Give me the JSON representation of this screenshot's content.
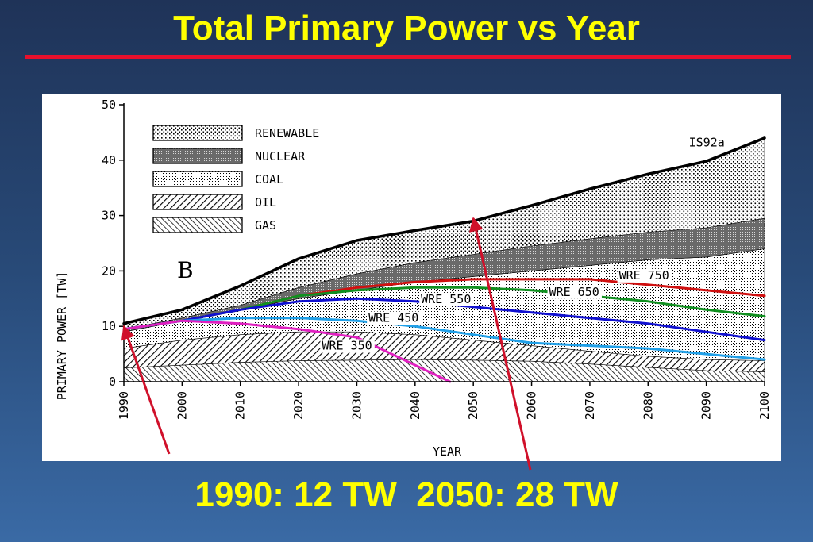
{
  "slide": {
    "title": "Total Primary Power vs Year",
    "caption_1990": "1990: 12 TW",
    "caption_2050": "2050: 28 TW"
  },
  "colors": {
    "title_text": "#ffff00",
    "rule": "#e8102c",
    "arrow": "#d0102a",
    "WRE 350": "#e020c0",
    "WRE 450": "#20a0e8",
    "WRE 550": "#1010d0",
    "WRE 650": "#109020",
    "WRE 750": "#d01010",
    "IS92a": "#000000"
  },
  "chart_data": {
    "type": "area",
    "panel_letter": "B",
    "xlabel": "YEAR",
    "ylabel": "PRIMARY POWER [TW]",
    "xlim": [
      1990,
      2100
    ],
    "ylim": [
      0,
      50
    ],
    "x_ticks": [
      1990,
      2000,
      2010,
      2020,
      2030,
      2040,
      2050,
      2060,
      2070,
      2080,
      2090,
      2100
    ],
    "y_ticks": [
      0,
      10,
      20,
      30,
      40,
      50
    ],
    "legend_position": "top-left",
    "legend": [
      "RENEWABLE",
      "NUCLEAR",
      "COAL",
      "OIL",
      "GAS"
    ],
    "x": [
      1990,
      2000,
      2010,
      2020,
      2030,
      2040,
      2050,
      2060,
      2070,
      2080,
      2090,
      2100
    ],
    "stacked_series": [
      {
        "name": "GAS",
        "pattern": "hatch-dense",
        "values": [
          2.5,
          3,
          3.5,
          3.8,
          3.9,
          4,
          3.9,
          3.7,
          3.2,
          2.6,
          2,
          1.8
        ]
      },
      {
        "name": "OIL",
        "pattern": "hatch",
        "values": [
          3.5,
          4.5,
          5,
          5.2,
          5.1,
          4.5,
          3.6,
          2.8,
          2.3,
          2,
          2,
          2
        ]
      },
      {
        "name": "COAL",
        "pattern": "dots",
        "values": [
          3,
          3.5,
          4.5,
          6,
          7.5,
          9.5,
          11.5,
          13.5,
          15.5,
          17.4,
          18.5,
          20.2
        ]
      },
      {
        "name": "NUCLEAR",
        "pattern": "dark",
        "values": [
          0.5,
          0.5,
          0.8,
          2,
          3,
          3.5,
          4,
          4.5,
          4.8,
          5,
          5.3,
          5.5
        ]
      },
      {
        "name": "RENEWABLE",
        "pattern": "grid",
        "values": [
          1,
          1.5,
          3.5,
          5.2,
          6,
          5.8,
          6,
          7.3,
          9,
          10.5,
          12.2,
          14.5
        ]
      }
    ],
    "lines": [
      {
        "name": "IS92a",
        "x": [
          1990,
          2000,
          2010,
          2020,
          2030,
          2040,
          2050,
          2060,
          2070,
          2080,
          2090,
          2100
        ],
        "y": [
          10.5,
          13,
          17.3,
          22.2,
          25.5,
          27.3,
          29,
          31.8,
          34.8,
          37.5,
          39.8,
          44
        ]
      },
      {
        "name": "WRE 750",
        "x": [
          1990,
          2000,
          2010,
          2020,
          2030,
          2040,
          2050,
          2060,
          2070,
          2085,
          2100
        ],
        "y": [
          9.5,
          11,
          13,
          15.5,
          17,
          18,
          18.5,
          18.5,
          18.5,
          17,
          15.5
        ]
      },
      {
        "name": "WRE 650",
        "x": [
          1990,
          2000,
          2010,
          2020,
          2030,
          2040,
          2050,
          2060,
          2070,
          2080,
          2090,
          2100
        ],
        "y": [
          9.5,
          11,
          13,
          15.5,
          16.5,
          17,
          17,
          16.5,
          15.5,
          14.5,
          13,
          11.8
        ]
      },
      {
        "name": "WRE 550",
        "x": [
          1990,
          2000,
          2010,
          2020,
          2030,
          2040,
          2050,
          2060,
          2070,
          2080,
          2090,
          2100
        ],
        "y": [
          9.5,
          11,
          13,
          14.5,
          15,
          14.5,
          13.5,
          12.5,
          11.5,
          10.5,
          9,
          7.5
        ]
      },
      {
        "name": "WRE 450",
        "x": [
          1990,
          2000,
          2010,
          2020,
          2030,
          2040,
          2050,
          2060,
          2070,
          2080,
          2090,
          2100
        ],
        "y": [
          9.5,
          11,
          11.5,
          11.5,
          11,
          10,
          8.5,
          7,
          6.5,
          6,
          5,
          4
        ]
      },
      {
        "name": "WRE 350",
        "x": [
          1990,
          2000,
          2010,
          2020,
          2030,
          2035,
          2040,
          2046
        ],
        "y": [
          9.5,
          11,
          10.5,
          9.5,
          8,
          5.5,
          3,
          0
        ]
      }
    ],
    "annotations": [
      {
        "text": "IS92a",
        "x": 2087,
        "y": 42.5
      },
      {
        "text": "WRE 750",
        "x": 2075,
        "y": 18.5
      },
      {
        "text": "WRE 650",
        "x": 2063,
        "y": 15.5
      },
      {
        "text": "WRE 550",
        "x": 2041,
        "y": 14.2
      },
      {
        "text": "WRE 450",
        "x": 2032,
        "y": 10.8
      },
      {
        "text": "WRE 350",
        "x": 2024,
        "y": 5.8
      }
    ],
    "arrow_targets": [
      {
        "label": "1990: 12 TW",
        "x": 1990,
        "y": 10
      },
      {
        "label": "2050: 28 TW",
        "x": 2050,
        "y": 29.5
      }
    ]
  }
}
